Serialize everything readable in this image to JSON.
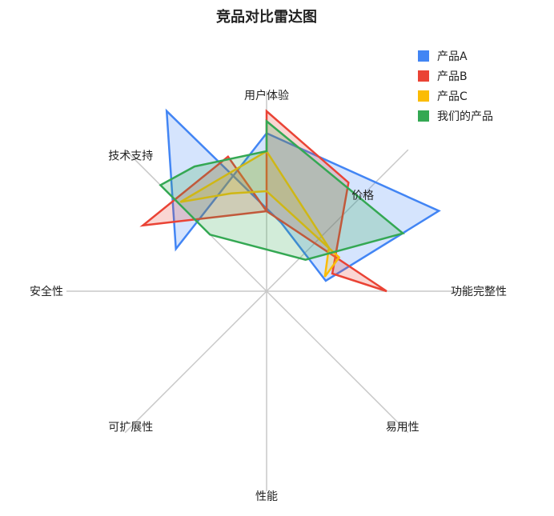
{
  "chart_data": {
    "type": "radar",
    "title": "竞品对比雷达图",
    "axes": [
      "用户体验",
      "价格",
      "功能完整性",
      "易用性",
      "性能",
      "可扩展性",
      "安全性",
      "技术支持"
    ],
    "rmax": 100,
    "grid": false,
    "legend_position": "top-right",
    "series": [
      {
        "name": "产品A",
        "color": "#4285F4",
        "points": [
          {
            "axis": "用户体验",
            "r": 79,
            "angle_offset_deg": 0
          },
          {
            "axis": "价格",
            "r": 95,
            "angle_offset_deg": 20
          },
          {
            "axis": "价格",
            "r": 30,
            "angle_offset_deg": 35
          },
          {
            "axis": "技术支持",
            "r": 35,
            "angle_offset_deg": 57
          },
          {
            "axis": "技术支持",
            "r": 103,
            "angle_offset_deg": 16
          },
          {
            "axis": "技术支持",
            "r": 50,
            "angle_offset_deg": -20
          },
          {
            "axis": "用户体验",
            "r": 79,
            "angle_offset_deg": 0
          }
        ]
      },
      {
        "name": "产品B",
        "color": "#EA4335",
        "points": [
          {
            "axis": "用户体验",
            "r": 90,
            "angle_offset_deg": 0
          },
          {
            "axis": "价格",
            "r": 68,
            "angle_offset_deg": -8
          },
          {
            "axis": "价格",
            "r": 34,
            "angle_offset_deg": 30
          },
          {
            "axis": "功能完整性",
            "r": 60,
            "angle_offset_deg": 0
          },
          {
            "axis": "用户体验",
            "r": 40,
            "angle_offset_deg": 0
          },
          {
            "axis": "技术支持",
            "r": 70,
            "angle_offset_deg": 29
          },
          {
            "axis": "技术支持",
            "r": 70,
            "angle_offset_deg": -17
          },
          {
            "axis": "用户体验",
            "r": 40,
            "angle_offset_deg": 0
          }
        ]
      },
      {
        "name": "产品C",
        "color": "#FBBC05",
        "points": [
          {
            "axis": "用户体验",
            "r": 70,
            "angle_offset_deg": 0
          },
          {
            "axis": "价格",
            "r": 38,
            "angle_offset_deg": 10
          },
          {
            "axis": "价格",
            "r": 30,
            "angle_offset_deg": 31
          },
          {
            "axis": "功能完整性",
            "r": 40,
            "angle_offset_deg": -25
          },
          {
            "axis": "用户体验",
            "r": 50,
            "angle_offset_deg": 0
          },
          {
            "axis": "技术支持",
            "r": 52,
            "angle_offset_deg": 25
          },
          {
            "axis": "技术支持",
            "r": 62,
            "angle_offset_deg": 1
          },
          {
            "axis": "用户体验",
            "r": 70,
            "angle_offset_deg": 0
          }
        ]
      },
      {
        "name": "我们的产品",
        "color": "#34A853",
        "points": [
          {
            "axis": "用户体验",
            "r": 85,
            "angle_offset_deg": 0
          },
          {
            "axis": "价格",
            "r": 74,
            "angle_offset_deg": 22
          },
          {
            "axis": "价格",
            "r": 25,
            "angle_offset_deg": 6
          },
          {
            "axis": "技术支持",
            "r": 40,
            "angle_offset_deg": 0
          },
          {
            "axis": "技术支持",
            "r": 75,
            "angle_offset_deg": 0
          },
          {
            "axis": "技术支持",
            "r": 72,
            "angle_offset_deg": 15
          },
          {
            "axis": "用户体验",
            "r": 70,
            "angle_offset_deg": 0
          }
        ]
      }
    ]
  }
}
